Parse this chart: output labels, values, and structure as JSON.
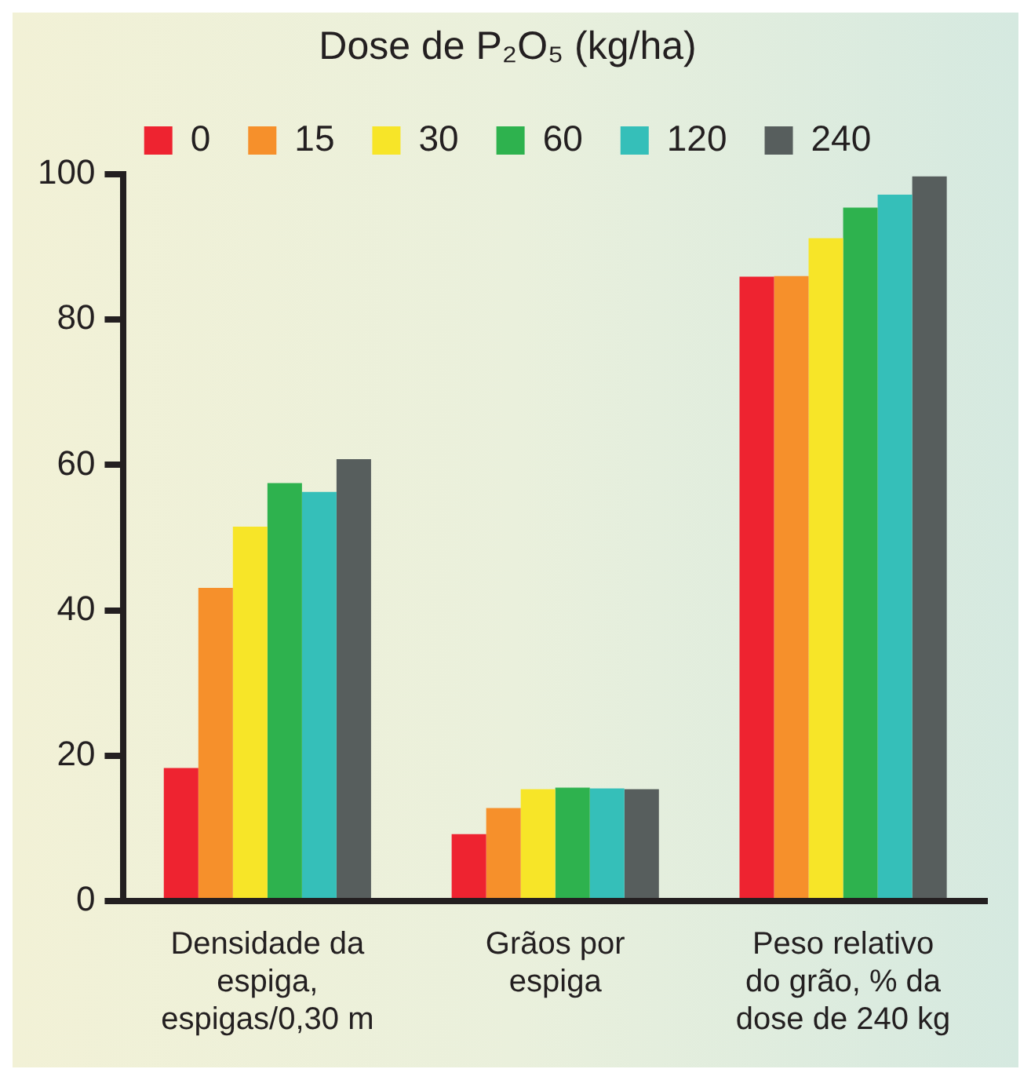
{
  "chart_data": {
    "type": "bar",
    "legend_title": "Dose de P₂O₅ (kg/ha)",
    "categories": [
      "Densidade da espiga, espigas/0,30 m",
      "Grãos por espiga",
      "Peso relativo do grão, % da dose de 240 kg"
    ],
    "series": [
      {
        "name": "0",
        "color": "#ee2330",
        "values": [
          18.3,
          9.2,
          85.9
        ]
      },
      {
        "name": "15",
        "color": "#f6902b",
        "values": [
          43.1,
          12.8,
          86
        ]
      },
      {
        "name": "30",
        "color": "#f7e528",
        "values": [
          51.5,
          15.4,
          91.2
        ]
      },
      {
        "name": "60",
        "color": "#2eb24e",
        "values": [
          57.5,
          15.6,
          95.4
        ]
      },
      {
        "name": "120",
        "color": "#35bfb9",
        "values": [
          56.3,
          15.5,
          97.2
        ]
      },
      {
        "name": "240",
        "color": "#575e5d",
        "values": [
          60.8,
          15.4,
          99.7
        ]
      }
    ],
    "ylim": [
      0,
      100
    ],
    "yticks": [
      0,
      20,
      40,
      60,
      80,
      100
    ],
    "grid": false,
    "legend": "top"
  }
}
